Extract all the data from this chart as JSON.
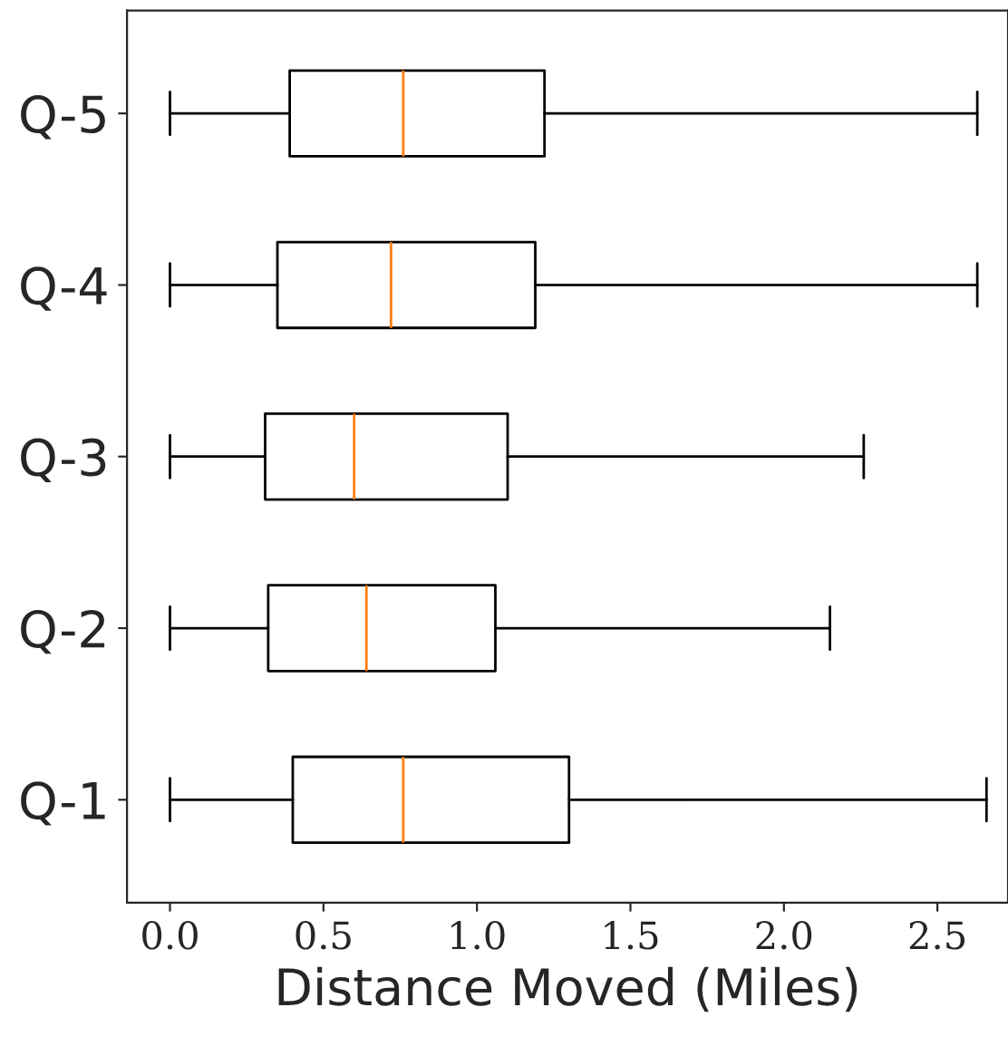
{
  "chart_data": {
    "type": "box",
    "orientation": "horizontal",
    "xlabel": "Distance Moved (Miles)",
    "categories": [
      "Q-5",
      "Q-4",
      "Q-3",
      "Q-2",
      "Q-1"
    ],
    "boxes": [
      {
        "low": 0,
        "q1": 0.39,
        "median": 0.76,
        "q3": 1.22,
        "high": 2.63
      },
      {
        "low": 0,
        "q1": 0.35,
        "median": 0.72,
        "q3": 1.19,
        "high": 2.63
      },
      {
        "low": 0,
        "q1": 0.31,
        "median": 0.6,
        "q3": 1.1,
        "high": 2.26
      },
      {
        "low": 0,
        "q1": 0.32,
        "median": 0.64,
        "q3": 1.06,
        "high": 2.15
      },
      {
        "low": 0,
        "q1": 0.4,
        "median": 0.76,
        "q3": 1.3,
        "high": 2.66
      }
    ],
    "color": "#000000",
    "xlim": [
      -0.14,
      2.73
    ],
    "xticks": [
      {
        "value": 0,
        "label": "0.0"
      },
      0.5,
      {
        "value": 1,
        "label": "1.0"
      },
      1.5,
      {
        "value": 2,
        "label": "2.0"
      },
      2.5
    ],
    "grid": false
  }
}
